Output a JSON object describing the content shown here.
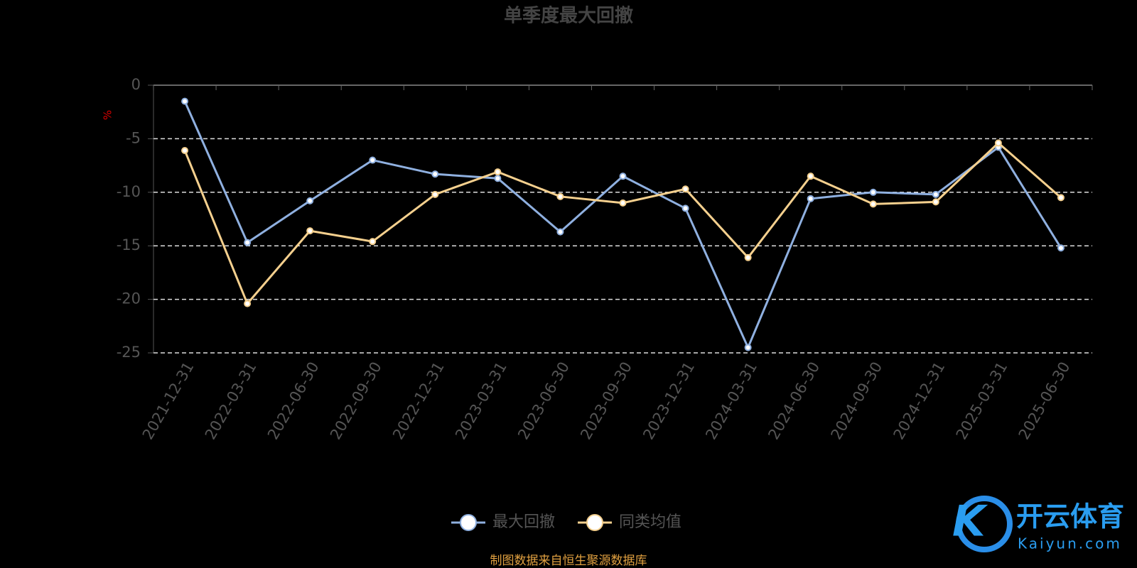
{
  "chart_data": {
    "type": "line",
    "title": "单季度最大回撤",
    "y_label": "%",
    "categories": [
      "2021-12-31",
      "2022-03-31",
      "2022-06-30",
      "2022-09-30",
      "2022-12-31",
      "2023-03-31",
      "2023-06-30",
      "2023-09-30",
      "2023-12-31",
      "2024-03-31",
      "2024-06-30",
      "2024-09-30",
      "2024-12-31",
      "2025-03-31",
      "2025-06-30"
    ],
    "series": [
      {
        "name": "最大回撤",
        "color": "#8fb0e0",
        "values": [
          -1.5,
          -14.7,
          -10.8,
          -7.0,
          -8.3,
          -8.7,
          -13.7,
          -8.5,
          -11.5,
          -24.5,
          -10.6,
          -10.0,
          -10.2,
          -5.8,
          -15.2
        ]
      },
      {
        "name": "同类均值",
        "color": "#f5d08e",
        "values": [
          -6.1,
          -20.4,
          -13.6,
          -14.6,
          -10.2,
          -8.1,
          -10.4,
          -11.0,
          -9.7,
          -16.1,
          -8.5,
          -11.1,
          -10.9,
          -5.4,
          -10.5
        ]
      }
    ],
    "ylim": [
      -25,
      0
    ],
    "yticks": [
      0,
      -5,
      -10,
      -15,
      -20,
      -25
    ],
    "grid": true,
    "legend": "bottom",
    "source": "制图数据来自恒生聚源数据库"
  },
  "logo": {
    "name": "开云体育",
    "domain": "Kaiyun.com"
  }
}
